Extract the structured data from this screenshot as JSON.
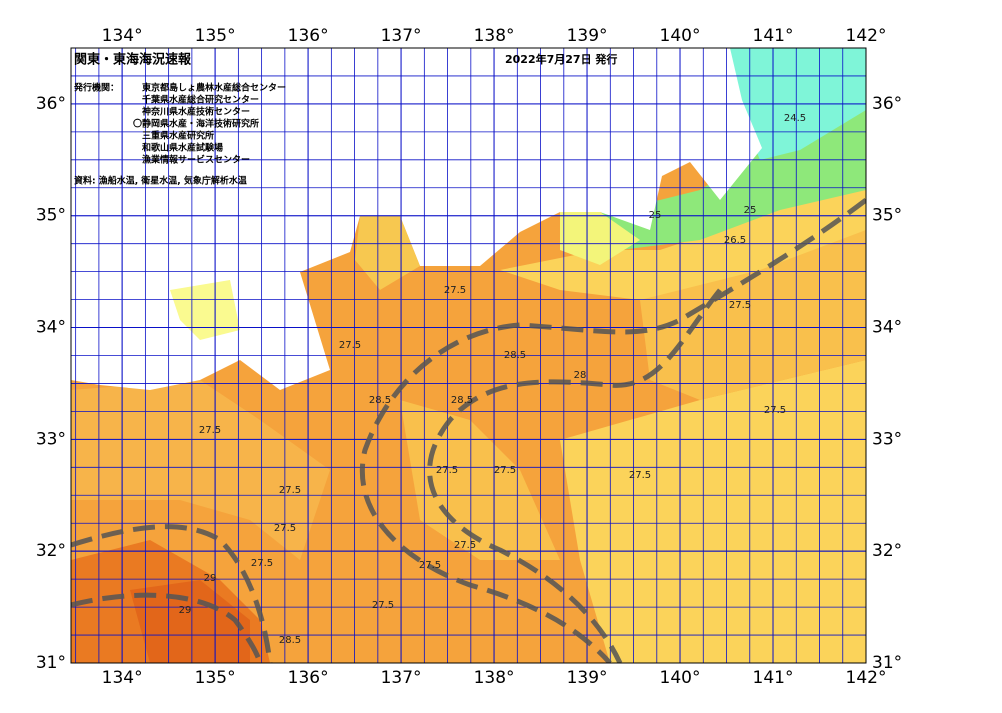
{
  "header": {
    "title": "関東・東海海況速報",
    "date": "2022年7月27日 発行"
  },
  "issuers": {
    "label": "発行機関：",
    "agencies": [
      "東京都島しょ農林水産総合センター",
      "千葉県水産総合研究センター",
      "神奈川県水産技術センター",
      "〇静岡県水産・海洋技術研究所",
      "三重県水産研究所",
      "和歌山県水産試験場",
      "漁業情報サービスセンター"
    ]
  },
  "source": "資料: 漁船水温, 衛星水温, 気象庁解析水温",
  "map": {
    "lon_range": [
      133.45,
      142
    ],
    "lat_range": [
      31,
      36.5
    ],
    "lon_ticks": [
      {
        "value": 134,
        "label": "134°"
      },
      {
        "value": 135,
        "label": "135°"
      },
      {
        "value": 136,
        "label": "136°"
      },
      {
        "value": 137,
        "label": "137°"
      },
      {
        "value": 138,
        "label": "138°"
      },
      {
        "value": 139,
        "label": "139°"
      },
      {
        "value": 140,
        "label": "140°"
      },
      {
        "value": 141,
        "label": "141°"
      },
      {
        "value": 142,
        "label": "142°"
      }
    ],
    "lat_ticks": [
      {
        "value": 31,
        "label": "31°"
      },
      {
        "value": 32,
        "label": "32°"
      },
      {
        "value": 33,
        "label": "33°"
      },
      {
        "value": 34,
        "label": "34°"
      },
      {
        "value": 35,
        "label": "35°"
      },
      {
        "value": 36,
        "label": "36°"
      }
    ],
    "contour_labels": [
      "27.5",
      "27.5",
      "28.5",
      "28.5",
      "28.5",
      "28",
      "27.5",
      "27.5",
      "27.5",
      "27.5",
      "27.5",
      "27.5",
      "27.5",
      "27.5",
      "27.5",
      "27.5",
      "28.5",
      "29",
      "29",
      "26.5",
      "25",
      "24.5",
      "25",
      "27.5",
      "27.5"
    ]
  }
}
